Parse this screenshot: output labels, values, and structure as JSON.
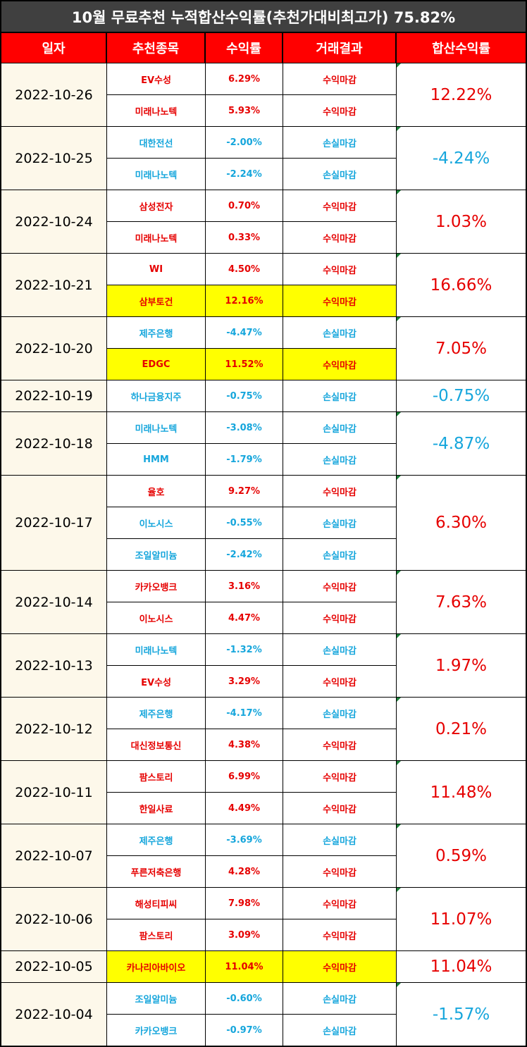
{
  "title": "10월 무료추천 누적합산수익률(추천가대비최고가) 75.82%",
  "headers": [
    "일자",
    "추천종목",
    "수익률",
    "거래결과",
    "합산수익률"
  ],
  "colors": {
    "positive": "#e60000",
    "negative": "#16a6dc",
    "header_bg": "#ff0000",
    "title_bg": "#404040",
    "highlight": "#ffff00",
    "date_bg": "#fdf8ea"
  },
  "groups": [
    {
      "date": "2022-10-26",
      "total": "12.22%",
      "total_sign": "pos",
      "rows": [
        {
          "stock": "EV수성",
          "rate": "6.29%",
          "result": "수익마감",
          "sign": "pos",
          "hl": false
        },
        {
          "stock": "미래나노텍",
          "rate": "5.93%",
          "result": "수익마감",
          "sign": "pos",
          "hl": false
        }
      ]
    },
    {
      "date": "2022-10-25",
      "total": "-4.24%",
      "total_sign": "neg",
      "rows": [
        {
          "stock": "대한전선",
          "rate": "-2.00%",
          "result": "손실마감",
          "sign": "neg",
          "hl": false
        },
        {
          "stock": "미래나노텍",
          "rate": "-2.24%",
          "result": "손실마감",
          "sign": "neg",
          "hl": false
        }
      ]
    },
    {
      "date": "2022-10-24",
      "total": "1.03%",
      "total_sign": "pos",
      "rows": [
        {
          "stock": "삼성전자",
          "rate": "0.70%",
          "result": "수익마감",
          "sign": "pos",
          "hl": false
        },
        {
          "stock": "미래나노텍",
          "rate": "0.33%",
          "result": "수익마감",
          "sign": "pos",
          "hl": false
        }
      ]
    },
    {
      "date": "2022-10-21",
      "total": "16.66%",
      "total_sign": "pos",
      "rows": [
        {
          "stock": "WI",
          "rate": "4.50%",
          "result": "수익마감",
          "sign": "pos",
          "hl": false
        },
        {
          "stock": "삼부토건",
          "rate": "12.16%",
          "result": "수익마감",
          "sign": "pos",
          "hl": true
        }
      ]
    },
    {
      "date": "2022-10-20",
      "total": "7.05%",
      "total_sign": "pos",
      "rows": [
        {
          "stock": "제주은행",
          "rate": "-4.47%",
          "result": "손실마감",
          "sign": "neg",
          "hl": false
        },
        {
          "stock": "EDGC",
          "rate": "11.52%",
          "result": "수익마감",
          "sign": "pos",
          "hl": true
        }
      ]
    },
    {
      "date": "2022-10-19",
      "total": "-0.75%",
      "total_sign": "neg",
      "rows": [
        {
          "stock": "하나금융지주",
          "rate": "-0.75%",
          "result": "손실마감",
          "sign": "neg",
          "hl": false
        }
      ]
    },
    {
      "date": "2022-10-18",
      "total": "-4.87%",
      "total_sign": "neg",
      "rows": [
        {
          "stock": "미래나노텍",
          "rate": "-3.08%",
          "result": "손실마감",
          "sign": "neg",
          "hl": false
        },
        {
          "stock": "HMM",
          "rate": "-1.79%",
          "result": "손실마감",
          "sign": "neg",
          "hl": false
        }
      ]
    },
    {
      "date": "2022-10-17",
      "total": "6.30%",
      "total_sign": "pos",
      "rows": [
        {
          "stock": "율호",
          "rate": "9.27%",
          "result": "수익마감",
          "sign": "pos",
          "hl": false
        },
        {
          "stock": "이노시스",
          "rate": "-0.55%",
          "result": "손실마감",
          "sign": "neg",
          "hl": false
        },
        {
          "stock": "조일알미늄",
          "rate": "-2.42%",
          "result": "손실마감",
          "sign": "neg",
          "hl": false
        }
      ]
    },
    {
      "date": "2022-10-14",
      "total": "7.63%",
      "total_sign": "pos",
      "rows": [
        {
          "stock": "카카오뱅크",
          "rate": "3.16%",
          "result": "수익마감",
          "sign": "pos",
          "hl": false
        },
        {
          "stock": "이노시스",
          "rate": "4.47%",
          "result": "수익마감",
          "sign": "pos",
          "hl": false
        }
      ]
    },
    {
      "date": "2022-10-13",
      "total": "1.97%",
      "total_sign": "pos",
      "rows": [
        {
          "stock": "미래나노텍",
          "rate": "-1.32%",
          "result": "손실마감",
          "sign": "neg",
          "hl": false
        },
        {
          "stock": "EV수성",
          "rate": "3.29%",
          "result": "수익마감",
          "sign": "pos",
          "hl": false
        }
      ]
    },
    {
      "date": "2022-10-12",
      "total": "0.21%",
      "total_sign": "pos",
      "rows": [
        {
          "stock": "제주은행",
          "rate": "-4.17%",
          "result": "손실마감",
          "sign": "neg",
          "hl": false
        },
        {
          "stock": "대신정보통신",
          "rate": "4.38%",
          "result": "수익마감",
          "sign": "pos",
          "hl": false
        }
      ]
    },
    {
      "date": "2022-10-11",
      "total": "11.48%",
      "total_sign": "pos",
      "rows": [
        {
          "stock": "팜스토리",
          "rate": "6.99%",
          "result": "수익마감",
          "sign": "pos",
          "hl": false
        },
        {
          "stock": "한일사료",
          "rate": "4.49%",
          "result": "수익마감",
          "sign": "pos",
          "hl": false
        }
      ]
    },
    {
      "date": "2022-10-07",
      "total": "0.59%",
      "total_sign": "pos",
      "rows": [
        {
          "stock": "제주은행",
          "rate": "-3.69%",
          "result": "손실마감",
          "sign": "neg",
          "hl": false
        },
        {
          "stock": "푸른저축은행",
          "rate": "4.28%",
          "result": "수익마감",
          "sign": "pos",
          "hl": false
        }
      ]
    },
    {
      "date": "2022-10-06",
      "total": "11.07%",
      "total_sign": "pos",
      "rows": [
        {
          "stock": "해성티피씨",
          "rate": "7.98%",
          "result": "수익마감",
          "sign": "pos",
          "hl": false
        },
        {
          "stock": "팜스토리",
          "rate": "3.09%",
          "result": "수익마감",
          "sign": "pos",
          "hl": false
        }
      ]
    },
    {
      "date": "2022-10-05",
      "total": "11.04%",
      "total_sign": "pos",
      "rows": [
        {
          "stock": "카나리아바이오",
          "rate": "11.04%",
          "result": "수익마감",
          "sign": "pos",
          "hl": true
        }
      ]
    },
    {
      "date": "2022-10-04",
      "total": "-1.57%",
      "total_sign": "neg",
      "rows": [
        {
          "stock": "조일알미늄",
          "rate": "-0.60%",
          "result": "손실마감",
          "sign": "neg",
          "hl": false
        },
        {
          "stock": "카카오뱅크",
          "rate": "-0.97%",
          "result": "손실마감",
          "sign": "neg",
          "hl": false
        }
      ]
    }
  ]
}
